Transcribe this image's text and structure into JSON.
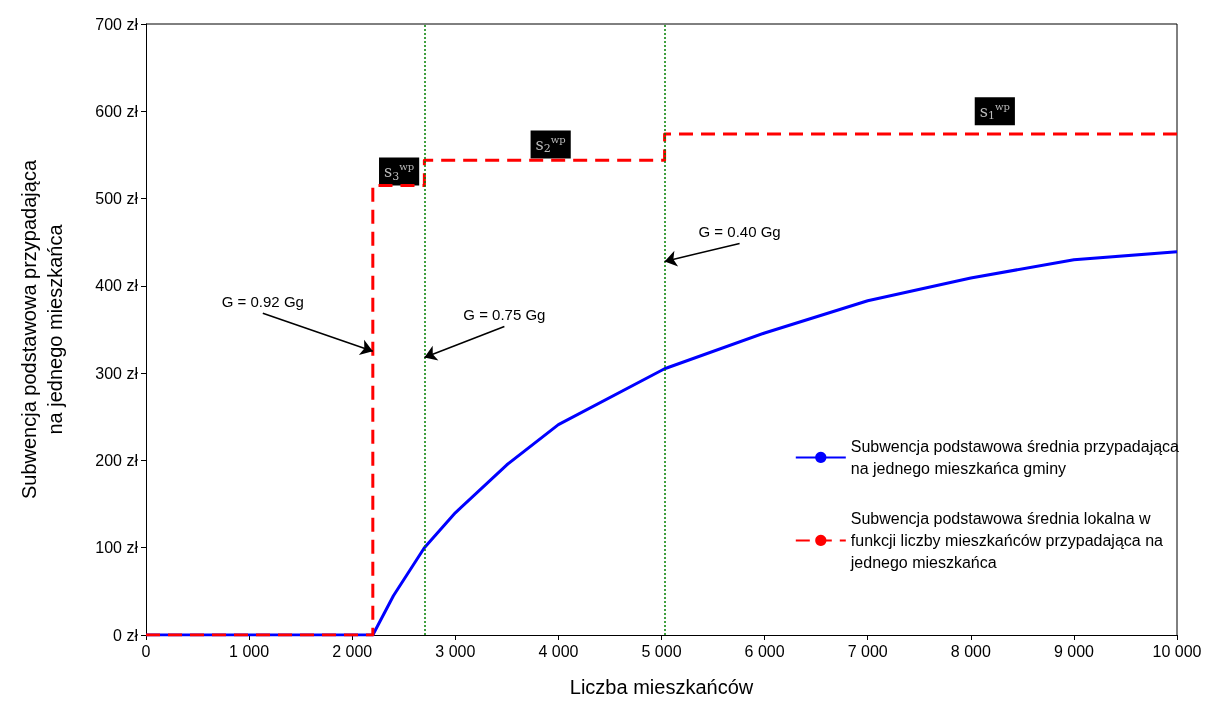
{
  "chart_data": {
    "type": "line",
    "xlabel": "Liczba mieszkańców",
    "ylabel": "Subwencja podstawowa przypadająca\nna jednego mieszkańca",
    "xlim": [
      0,
      10000
    ],
    "xticks": [
      {
        "value": 0,
        "label": "0"
      },
      {
        "value": 1000,
        "label": "1 000"
      },
      {
        "value": 2000,
        "label": "2 000"
      },
      {
        "value": 3000,
        "label": "3 000"
      },
      {
        "value": 4000,
        "label": "4 000"
      },
      {
        "value": 5000,
        "label": "5 000"
      },
      {
        "value": 6000,
        "label": "6 000"
      },
      {
        "value": 7000,
        "label": "7 000"
      },
      {
        "value": 8000,
        "label": "8 000"
      },
      {
        "value": 9000,
        "label": "9 000"
      },
      {
        "value": 10000,
        "label": "10 000"
      }
    ],
    "ylim": [
      0,
      700
    ],
    "yticks": [
      {
        "value": 0,
        "label": "0 zł"
      },
      {
        "value": 100,
        "label": "100 zł"
      },
      {
        "value": 200,
        "label": "200 zł"
      },
      {
        "value": 300,
        "label": "300 zł"
      },
      {
        "value": 400,
        "label": "400 zł"
      },
      {
        "value": 500,
        "label": "500 zł"
      },
      {
        "value": 600,
        "label": "600 zł"
      },
      {
        "value": 700,
        "label": "700 zł"
      }
    ],
    "grid": false,
    "legend": "right",
    "series": [
      {
        "name": "Subwencja podstawowa średnia przypadająca na jednego mieszkańca gminy",
        "color": "#0000ff",
        "line_style": "solid",
        "x": [
          0,
          2200,
          2400,
          2700,
          3000,
          3500,
          4000,
          5030,
          6000,
          7000,
          8000,
          9000,
          10000
        ],
        "values": [
          0,
          0,
          45,
          100,
          140,
          195,
          241,
          305,
          346,
          383,
          409,
          430,
          439
        ]
      },
      {
        "name": "Subwencja podstawowa średnia lokalna w funkcji liczby mieszkańców przypadająca na jednego mieszkańca",
        "type": "step",
        "color": "#ff0000",
        "line_style": "dashed",
        "x": [
          0,
          2200,
          2700,
          5030,
          10000
        ],
        "values": [
          0,
          515,
          544,
          574,
          574
        ]
      }
    ],
    "ref_lines": [
      {
        "axis": "x",
        "value": 2700,
        "label": null,
        "color": "#008000",
        "line_style": "dotted"
      },
      {
        "axis": "x",
        "value": 5030,
        "label": null,
        "color": "#008000",
        "line_style": "dotted"
      }
    ],
    "annotations": [
      {
        "text": "G = 0.92 Gg",
        "x": 2200,
        "y": 325
      },
      {
        "text": "G = 0.75 Gg",
        "x": 2700,
        "y": 318
      },
      {
        "text": "G = 0.40 Gg",
        "x": 5030,
        "y": 428
      },
      {
        "text": "s$_{3}$$^{wp}$",
        "x": 2455,
        "y": 531
      },
      {
        "text": "s$_{2}$$^{wp}$",
        "x": 3925,
        "y": 562
      },
      {
        "text": "s$_{1}$$^{wp}$",
        "x": 8233,
        "y": 600
      }
    ]
  }
}
